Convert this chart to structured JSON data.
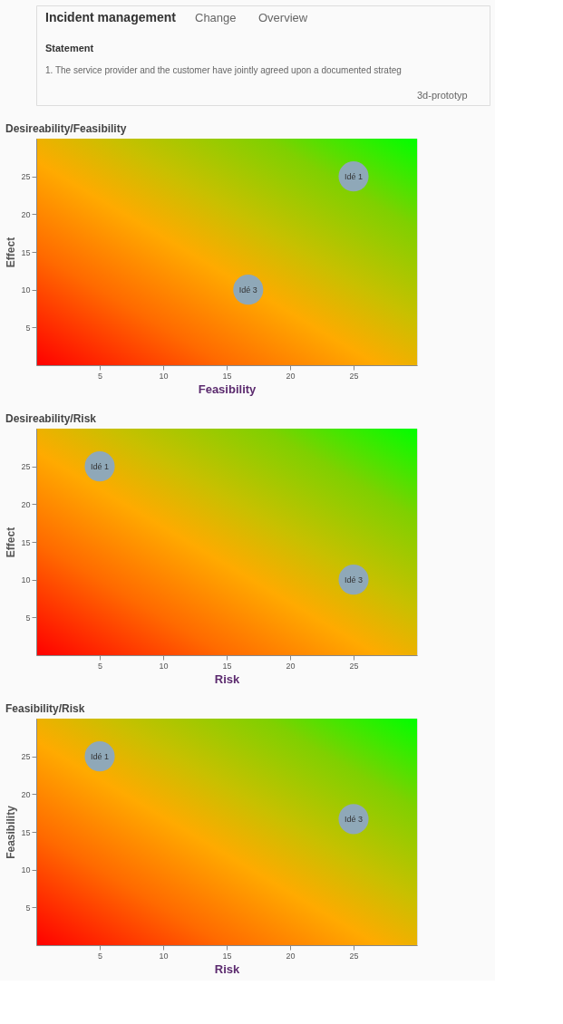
{
  "chart_data": [
    {
      "type": "scatter",
      "title": "Desireability/Feasibility",
      "xlabel": "Feasibility",
      "ylabel": "Effect",
      "annotations": [
        "Incident management",
        "Change",
        "Overview",
        "Statement",
        "1. The service provider and the customer have jointly agreed upon a documented strateg",
        "3d-prototyp",
        {
          "text": "Idé 1",
          "x": 25,
          "y": 25
        },
        {
          "text": "Idé 3",
          "x": 16.7,
          "y": 10
        }
      ],
      "x": [
        25,
        16.7
      ],
      "series": [
        {
          "color": "#8fa8b8",
          "values": [
            25,
            10
          ]
        }
      ],
      "xlim": [
        0,
        30
      ],
      "ylim": [
        0,
        30
      ],
      "xticks": [
        5,
        10,
        15,
        20,
        25
      ],
      "yticks": [
        5,
        10,
        15,
        20,
        25
      ],
      "marker": "circle",
      "grid": false,
      "legend": false
    },
    {
      "type": "scatter",
      "title": "Desireability/Risk",
      "xlabel": "Risk",
      "ylabel": "Effect",
      "annotations": [
        {
          "text": "Idé 1",
          "x": 5,
          "y": 25
        },
        {
          "text": "Idé 3",
          "x": 25,
          "y": 10
        }
      ],
      "x": [
        5,
        25
      ],
      "series": [
        {
          "color": "#8fa8b8",
          "values": [
            25,
            10
          ]
        }
      ],
      "xlim": [
        0,
        30
      ],
      "ylim": [
        0,
        30
      ],
      "xticks": [
        5,
        10,
        15,
        20,
        25
      ],
      "yticks": [
        5,
        10,
        15,
        20,
        25
      ],
      "marker": "circle",
      "grid": false,
      "legend": false
    },
    {
      "type": "scatter",
      "title": "Feasibility/Risk",
      "xlabel": "Risk",
      "ylabel": "Feasibility",
      "annotations": [
        {
          "text": "Idé 1",
          "x": 5,
          "y": 25
        },
        {
          "text": "Idé 3",
          "x": 25,
          "y": 16.7
        }
      ],
      "x": [
        5,
        25
      ],
      "series": [
        {
          "color": "#8fa8b8",
          "values": [
            25,
            16.7
          ]
        }
      ],
      "xlim": [
        0,
        30
      ],
      "ylim": [
        0,
        30
      ],
      "xticks": [
        5,
        10,
        15,
        20,
        25
      ],
      "yticks": [
        5,
        10,
        15,
        20,
        25
      ],
      "marker": "circle",
      "grid": false,
      "legend": false
    }
  ]
}
